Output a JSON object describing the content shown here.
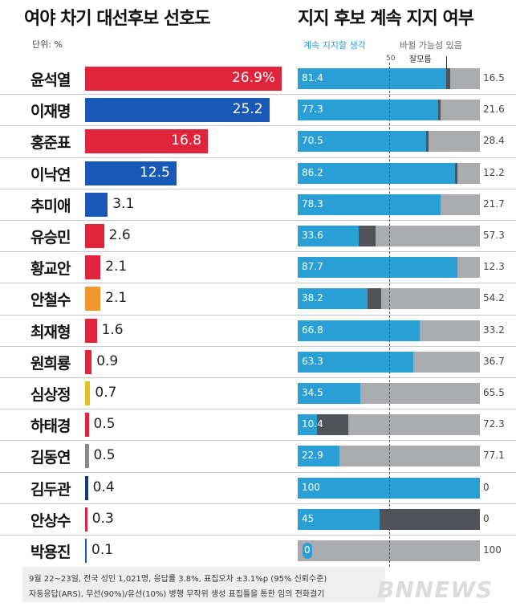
{
  "titles": {
    "left": "여야 차기 대선후보 선호도",
    "right": "지지 후보 계속 지지 여부"
  },
  "unit_label": "단위: %",
  "legend": {
    "keep": "계속 지지할 생각",
    "change": "바뀔 가능성 있음",
    "unknown": "잘모름",
    "midline": "50"
  },
  "colors": {
    "red": "#e0243c",
    "blue": "#1858b6",
    "orange": "#f0962a",
    "yellow": "#e4bf1e",
    "gray": "#8a8a8a",
    "navy": "#0e3a78",
    "keep": "#2a9fd6",
    "unknown": "#505458",
    "change": "#a9abae"
  },
  "chart_data": [
    {
      "type": "bar",
      "title": "여야 차기 대선후보 선호도",
      "unit": "단위: %",
      "categories": [
        "윤석열",
        "이재명",
        "홍준표",
        "이낙연",
        "추미애",
        "유승민",
        "황교안",
        "안철수",
        "최재형",
        "원희룡",
        "심상정",
        "하태경",
        "김동연",
        "김두관",
        "안상수",
        "박용진"
      ],
      "values": [
        26.9,
        25.2,
        16.8,
        12.5,
        3.1,
        2.6,
        2.1,
        2.1,
        1.6,
        0.9,
        0.7,
        0.5,
        0.5,
        0.4,
        0.3,
        0.1
      ],
      "labels": [
        "26.9%",
        "25.2",
        "16.8",
        "12.5",
        "3.1",
        "2.6",
        "2.1",
        "2.1",
        "1.6",
        "0.9",
        "0.7",
        "0.5",
        "0.5",
        "0.4",
        "0.3",
        "0.1"
      ],
      "bar_colors": [
        "red",
        "blue",
        "red",
        "blue",
        "blue",
        "red",
        "red",
        "orange",
        "red",
        "red",
        "yellow",
        "red",
        "gray",
        "navy",
        "red",
        "blue"
      ],
      "xlim": [
        0,
        26.9
      ]
    },
    {
      "type": "bar",
      "stacked": true,
      "orientation": "horizontal",
      "title": "지지 후보 계속 지지 여부",
      "categories": [
        "윤석열",
        "이재명",
        "홍준표",
        "이낙연",
        "추미애",
        "유승민",
        "황교안",
        "안철수",
        "최재형",
        "원희룡",
        "심상정",
        "하태경",
        "김동연",
        "김두관",
        "안상수",
        "박용진"
      ],
      "series": [
        {
          "name": "계속 지지할 생각",
          "values": [
            81.4,
            77.3,
            70.5,
            86.2,
            78.3,
            33.6,
            87.7,
            38.2,
            66.8,
            63.3,
            34.5,
            10.4,
            22.9,
            100,
            45,
            0
          ]
        },
        {
          "name": "잘모름",
          "values": [
            2.1,
            1.1,
            1.1,
            1.6,
            0,
            9.1,
            0,
            7.6,
            0,
            0,
            0,
            17.3,
            0,
            0,
            55,
            0
          ]
        },
        {
          "name": "바뀔 가능성 있음",
          "values": [
            16.5,
            21.6,
            28.4,
            12.2,
            21.7,
            57.3,
            12.3,
            54.2,
            33.2,
            36.7,
            65.5,
            72.3,
            77.1,
            0,
            0,
            100
          ]
        }
      ],
      "keep_labels": [
        "81.4",
        "77.3",
        "70.5",
        "86.2",
        "78.3",
        "33.6",
        "87.7",
        "38.2",
        "66.8",
        "63.3",
        "34.5",
        "10.4",
        "22.9",
        "100",
        "45",
        "0"
      ],
      "change_labels": [
        "16.5",
        "21.6",
        "28.4",
        "12.2",
        "21.7",
        "57.3",
        "12.3",
        "54.2",
        "33.2",
        "36.7",
        "65.5",
        "72.3",
        "77.1",
        "0",
        "0",
        "100"
      ],
      "reference_line": 50,
      "xlim": [
        0,
        100
      ]
    }
  ],
  "notes": {
    "line1": "9월 22~23일, 전국 성인 1,021명, 응답률 3.8%, 표집오차 ±3.1%p (95% 신뢰수준)",
    "line2": "자동응답(ARS), 무선(90%)/유선(10%) 병행  무작위 생성 표집틀을 통한 임의 전화걸기"
  },
  "watermark": "BNNEWS"
}
